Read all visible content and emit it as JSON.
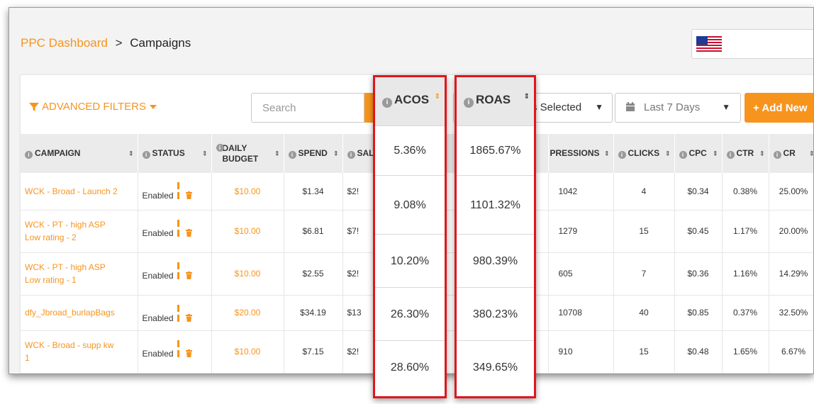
{
  "breadcrumb": {
    "root": "PPC Dashboard",
    "separator": ">",
    "current": "Campaigns"
  },
  "country_flag": "us-flag",
  "toolbar": {
    "advanced_filters": "ADVANCED FILTERS",
    "search_placeholder": "Search",
    "status_select": "s Selected",
    "status_left_fragment": "us",
    "date_range": "Last 7 Days",
    "add_button": "+ Add New"
  },
  "columns": {
    "campaign": "CAMPAIGN",
    "status": "STATUS",
    "daily_budget_line1": "DAILY",
    "daily_budget_line2": "BUDGET",
    "spend": "SPEND",
    "sales": "SAL",
    "impressions": "PRESSIONS",
    "clicks": "CLICKS",
    "cpc": "CPC",
    "ctr": "CTR",
    "cr": "CR"
  },
  "highlighted": {
    "acos": {
      "label": "ACOS",
      "values": [
        "5.36%",
        "9.08%",
        "10.20%",
        "26.30%",
        "28.60%"
      ]
    },
    "roas": {
      "label": "ROAS",
      "values": [
        "1865.67%",
        "1101.32%",
        "980.39%",
        "380.23%",
        "349.65%"
      ]
    }
  },
  "rows": [
    {
      "campaign_l1": "WCK - Broad - Launch 2",
      "campaign_l2": "",
      "status": "Enabled",
      "budget": "$10.00",
      "spend": "$1.34",
      "sales": "$2!",
      "impressions": "1042",
      "clicks": "4",
      "cpc": "$0.34",
      "ctr": "0.38%",
      "cr": "25.00%"
    },
    {
      "campaign_l1": "WCK - PT - high ASP",
      "campaign_l2": "Low rating - 2",
      "status": "Enabled",
      "budget": "$10.00",
      "spend": "$6.81",
      "sales": "$7!",
      "impressions": "1279",
      "clicks": "15",
      "cpc": "$0.45",
      "ctr": "1.17%",
      "cr": "20.00%"
    },
    {
      "campaign_l1": "WCK - PT - high ASP",
      "campaign_l2": "Low rating - 1",
      "status": "Enabled",
      "budget": "$10.00",
      "spend": "$2.55",
      "sales": "$2!",
      "impressions": "605",
      "clicks": "7",
      "cpc": "$0.36",
      "ctr": "1.16%",
      "cr": "14.29%"
    },
    {
      "campaign_l1": "dfy_Jbroad_burlapBags",
      "campaign_l2": "",
      "status": "Enabled",
      "budget": "$20.00",
      "spend": "$34.19",
      "sales": "$13",
      "impressions": "10708",
      "clicks": "40",
      "cpc": "$0.85",
      "ctr": "0.37%",
      "cr": "32.50%"
    },
    {
      "campaign_l1": "WCK - Broad - supp kw",
      "campaign_l2": "1",
      "status": "Enabled",
      "budget": "$10.00",
      "spend": "$7.15",
      "sales": "$2!",
      "impressions": "910",
      "clicks": "15",
      "cpc": "$0.48",
      "ctr": "1.65%",
      "cr": "6.67%"
    }
  ],
  "colors": {
    "accent": "#f7941d",
    "highlight_border": "#e0161b"
  }
}
